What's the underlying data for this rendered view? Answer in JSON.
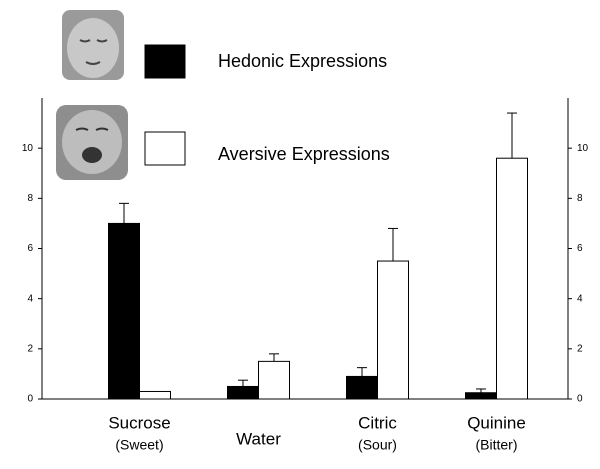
{
  "chart_data": {
    "type": "bar",
    "categories": [
      "Sucrose",
      "Water",
      "Citric",
      "Quinine"
    ],
    "category_sublabels": [
      "(Sweet)",
      null,
      "(Sour)",
      "(Bitter)"
    ],
    "series": [
      {
        "name": "Hedonic Expressions",
        "color": "#000000",
        "values": [
          7.0,
          0.5,
          0.9,
          0.25
        ],
        "errors": [
          0.8,
          0.25,
          0.35,
          0.15
        ]
      },
      {
        "name": "Aversive Expressions",
        "color": "#ffffff",
        "values": [
          0.3,
          1.5,
          5.5,
          9.6
        ],
        "errors": [
          null,
          0.3,
          1.3,
          1.8
        ]
      }
    ],
    "ylim": [
      0,
      12
    ],
    "yticks": [
      0,
      2,
      4,
      6,
      8,
      10
    ],
    "y2lim": [
      0,
      12
    ],
    "y2ticks": [
      0,
      2,
      4,
      6,
      8,
      10
    ]
  }
}
